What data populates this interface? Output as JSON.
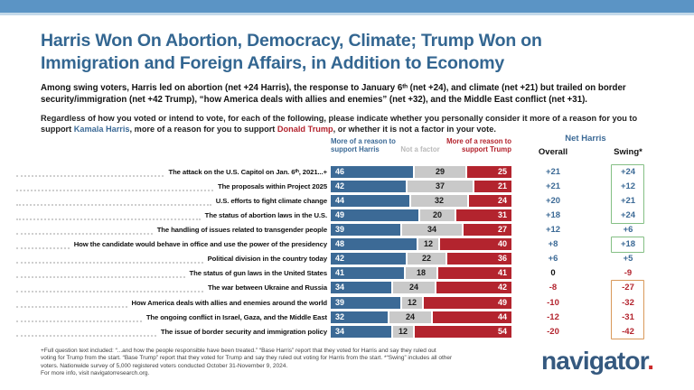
{
  "page": {
    "title_line1": "Harris Won On Abortion, Democracy, Climate; Trump Won on",
    "title_line2": "Immigration and Foreign Affairs, in Addition to Economy",
    "subtitle": "Among swing voters, Harris led on abortion (net +24 Harris), the response to January 6ᵗʰ (net +24), and climate (net +21) but trailed on border security/immigration (net +42 Trump), “how America deals with allies and enemies” (net +32), and the Middle East conflict (net +31).",
    "question": {
      "pre": "Regardless of how you voted or intend to vote, for each of the following, please indicate whether you personally consider it more of a reason for you to support ",
      "harris": "Kamala Harris",
      "mid": ", more of a reason for you to support ",
      "trump": "Donald Trump",
      "post": ", or whether it is not a factor in your vote."
    }
  },
  "chart_data": {
    "type": "bar",
    "stacked": true,
    "orientation": "horizontal",
    "xlim": [
      0,
      100
    ],
    "legend": [
      "More of a reason to support Harris",
      "Not a factor",
      "More of a reason to support Trump"
    ],
    "net_header": "Net Harris",
    "net_columns": [
      "Overall",
      "Swing*"
    ],
    "categories": [
      "The attack on the U.S. Capitol on Jan. 6ᵗʰ, 2021...+",
      "The proposals within Project 2025",
      "U.S. efforts to fight climate change",
      "The status of abortion laws in the U.S.",
      "The handling of issues related to transgender people",
      "How the candidate would behave in office and use the power of the presidency",
      "Political division in the country today",
      "The status of gun laws in the United States",
      "The war between Ukraine and Russia",
      "How America deals with allies and enemies around the world",
      "The ongoing conflict in Israel, Gaza, and the Middle East",
      "The issue of border security and immigration policy"
    ],
    "series": [
      {
        "name": "More of a reason to support Harris",
        "color": "#3c6a96",
        "values": [
          46,
          42,
          44,
          49,
          39,
          48,
          42,
          41,
          34,
          39,
          32,
          34
        ]
      },
      {
        "name": "Not a factor",
        "color": "#c9c9c9",
        "values": [
          29,
          37,
          32,
          20,
          34,
          12,
          22,
          18,
          24,
          12,
          24,
          12
        ]
      },
      {
        "name": "More of a reason to support Trump",
        "color": "#b3242e",
        "values": [
          25,
          21,
          24,
          31,
          27,
          40,
          36,
          41,
          42,
          49,
          44,
          54
        ]
      }
    ],
    "net_overall": [
      "+21",
      "+21",
      "+20",
      "+18",
      "+12",
      "+8",
      "+6",
      "0",
      "-8",
      "-10",
      "-12",
      "-20"
    ],
    "net_swing": [
      "+24",
      "+12",
      "+21",
      "+24",
      "+6",
      "+18",
      "+5",
      "-9",
      "-27",
      "-32",
      "-31",
      "-42"
    ],
    "swing_boxes": [
      {
        "start_row": 0,
        "end_row": 3,
        "color": "#84bf84"
      },
      {
        "start_row": 5,
        "end_row": 5,
        "color": "#84bf84"
      },
      {
        "start_row": 8,
        "end_row": 11,
        "color": "#d9995a"
      }
    ]
  },
  "footnote": {
    "lines": [
      "+Full question text included: “...and how the people responsible have been treated.” “Base Harris” report that they voted for Harris and say they ruled out",
      "voting for Trump from the start. “Base Trump” report that they voted for Trump and say they ruled out voting for Harris from the start. *“Swing” includes all other",
      "voters. Nationwide survey of 5,000 registered voters conducted October 31-November 9, 2024.",
      "For more info, visit navigatorresearch.org."
    ]
  },
  "logo": {
    "text": "navigator",
    "dot": "."
  }
}
